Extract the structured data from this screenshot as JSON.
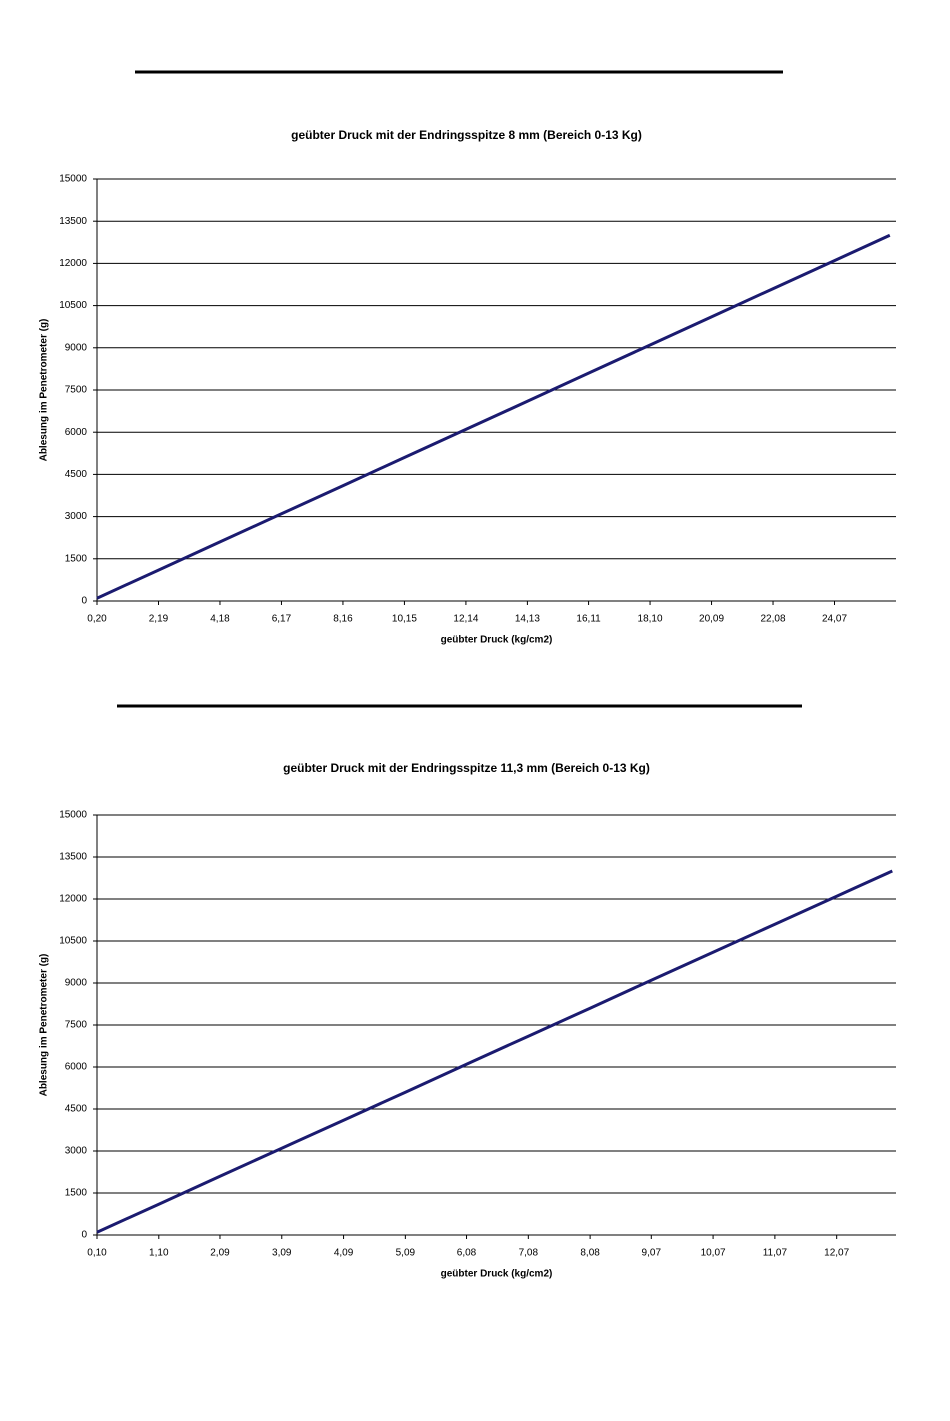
{
  "chart_data": [
    {
      "type": "line",
      "title": "geübter Druck mit der Endringsspitze 8 mm (Bereich 0-13 Kg)",
      "x_label": "geübter Druck (kg/cm2)",
      "y_label": "Ablesung im Penetrometer (g)",
      "x": [
        0.2,
        2.19,
        4.18,
        6.17,
        8.16,
        10.15,
        12.14,
        14.13,
        16.11,
        18.1,
        20.09,
        22.08,
        24.07,
        25.86
      ],
      "series": [
        {
          "name": "Ablesung",
          "color": "#1b1b70",
          "values": [
            100,
            1100,
            2100,
            3100,
            4100,
            5100,
            6100,
            7100,
            8100,
            9100,
            10100,
            11100,
            12100,
            13000
          ]
        }
      ],
      "xlim": [
        0.2,
        26.06
      ],
      "xticks": [
        {
          "value": 0.2,
          "label": "0,20"
        },
        {
          "value": 2.19,
          "label": "2,19"
        },
        {
          "value": 4.18,
          "label": "4,18"
        },
        {
          "value": 6.17,
          "label": "6,17"
        },
        {
          "value": 8.16,
          "label": "8,16"
        },
        {
          "value": 10.15,
          "label": "10,15"
        },
        {
          "value": 12.14,
          "label": "12,14"
        },
        {
          "value": 14.13,
          "label": "14,13"
        },
        {
          "value": 16.11,
          "label": "16,11"
        },
        {
          "value": 18.1,
          "label": "18,10"
        },
        {
          "value": 20.09,
          "label": "20,09"
        },
        {
          "value": 22.08,
          "label": "22,08"
        },
        {
          "value": 24.07,
          "label": "24,07"
        }
      ],
      "ylim": [
        0,
        15000
      ],
      "yticks": [
        0,
        1500,
        3000,
        4500,
        6000,
        7500,
        9000,
        10500,
        12000,
        13500,
        15000
      ],
      "grid": true
    },
    {
      "type": "line",
      "title": "geübter Druck mit der Endringsspitze 11,3 mm (Bereich 0-13 Kg)",
      "x_label": "geübter Druck (kg/cm2)",
      "y_label": "Ablesung im Penetrometer (g)",
      "x": [
        0.1,
        1.1,
        2.09,
        3.09,
        4.09,
        5.09,
        6.08,
        7.08,
        8.08,
        9.07,
        10.07,
        11.07,
        12.07,
        12.97
      ],
      "series": [
        {
          "name": "Ablesung",
          "color": "#1b1b70",
          "values": [
            100,
            1100,
            2100,
            3100,
            4100,
            5100,
            6100,
            7100,
            8100,
            9100,
            10100,
            11100,
            12100,
            13000
          ]
        }
      ],
      "xlim": [
        0.1,
        13.03
      ],
      "xticks": [
        {
          "value": 0.1,
          "label": "0,10"
        },
        {
          "value": 1.1,
          "label": "1,10"
        },
        {
          "value": 2.09,
          "label": "2,09"
        },
        {
          "value": 3.09,
          "label": "3,09"
        },
        {
          "value": 4.09,
          "label": "4,09"
        },
        {
          "value": 5.09,
          "label": "5,09"
        },
        {
          "value": 6.08,
          "label": "6,08"
        },
        {
          "value": 7.08,
          "label": "7,08"
        },
        {
          "value": 8.08,
          "label": "8,08"
        },
        {
          "value": 9.07,
          "label": "9,07"
        },
        {
          "value": 10.07,
          "label": "10,07"
        },
        {
          "value": 11.07,
          "label": "11,07"
        },
        {
          "value": 12.07,
          "label": "12,07"
        }
      ],
      "ylim": [
        0,
        15000
      ],
      "yticks": [
        0,
        1500,
        3000,
        4500,
        6000,
        7500,
        9000,
        10500,
        12000,
        13500,
        15000
      ],
      "grid": true
    }
  ]
}
